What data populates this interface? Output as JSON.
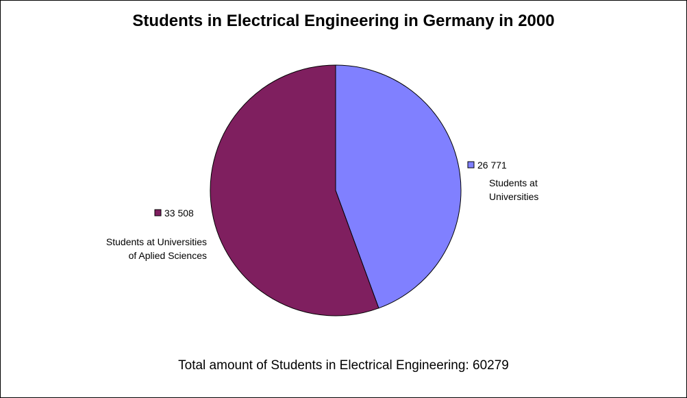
{
  "chart_data": {
    "type": "pie",
    "title": "Students in Electrical Engineering in Germany in 2000",
    "slices": [
      {
        "label": "Students at Universities",
        "label_lines": [
          "Students at",
          "Universities"
        ],
        "value": 26771,
        "value_label": "26 771",
        "color": "#8080FF"
      },
      {
        "label": "Students at Universities of Aplied Sciences",
        "label_lines": [
          "Students at Universities",
          "of Aplied Sciences"
        ],
        "value": 33508,
        "value_label": "33 508",
        "color": "#7F1F5F"
      }
    ],
    "footer": "Total amount of Students in Electrical Engineering: 60279"
  }
}
